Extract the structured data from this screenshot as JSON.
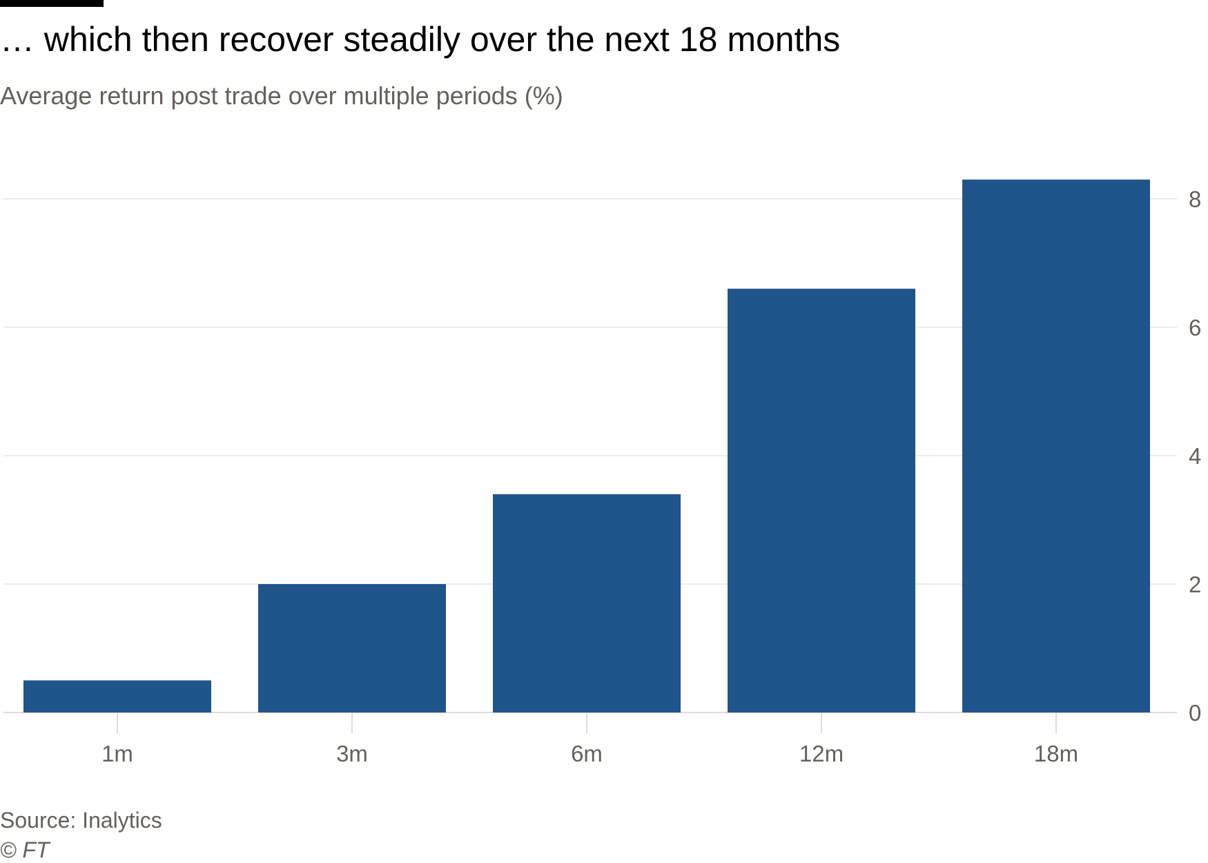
{
  "title": "… which then recover steadily over the next 18 months",
  "subtitle": "Average return post trade over multiple periods (%)",
  "source": "Source: Inalytics",
  "copyright": "© FT",
  "colors": {
    "bar": "#1f558b",
    "grid": "#e9ded6",
    "text": "#66605c"
  },
  "chart_data": {
    "type": "bar",
    "title": "… which then recover steadily over the next 18 months",
    "subtitle": "Average return post trade over multiple periods (%)",
    "categories": [
      "1m",
      "3m",
      "6m",
      "12m",
      "18m"
    ],
    "values": [
      0.5,
      2.0,
      3.4,
      6.6,
      8.3
    ],
    "xlabel": "",
    "ylabel": "",
    "ylim": [
      0,
      8.6
    ],
    "yticks": [
      0,
      2,
      4,
      6,
      8
    ],
    "y_axis_side": "right",
    "grid": true
  }
}
